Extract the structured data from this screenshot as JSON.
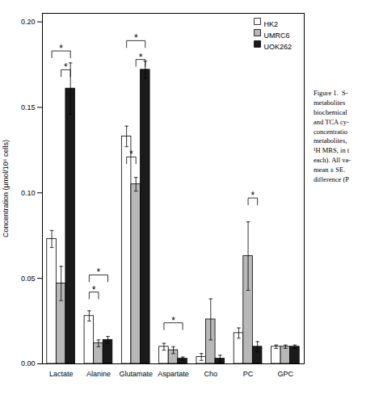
{
  "chart_data": {
    "type": "bar",
    "categories": [
      "Lactate",
      "Alanine",
      "Glutamate",
      "Aspartate",
      "Cho",
      "PC",
      "GPC"
    ],
    "series": [
      {
        "name": "HK2",
        "color": "white",
        "values": [
          0.073,
          0.028,
          0.133,
          0.01,
          0.004,
          0.018,
          0.01
        ],
        "errors": [
          0.005,
          0.003,
          0.006,
          0.002,
          0.002,
          0.003,
          0.001
        ]
      },
      {
        "name": "UMRC6",
        "color": "#b8b8b8",
        "values": [
          0.047,
          0.012,
          0.105,
          0.008,
          0.026,
          0.063,
          0.01
        ],
        "errors": [
          0.01,
          0.002,
          0.004,
          0.002,
          0.012,
          0.02,
          0.001
        ]
      },
      {
        "name": "UOK262",
        "color": "#1a1a1a",
        "values": [
          0.161,
          0.014,
          0.172,
          0.003,
          0.003,
          0.01,
          0.01
        ],
        "errors": [
          0.015,
          0.002,
          0.005,
          0.001,
          0.002,
          0.003,
          0.001
        ]
      }
    ],
    "ylabel": "Concentration (μmol/10⁶ cells)",
    "ylim": [
      0,
      0.205
    ],
    "yticks": [
      {
        "value": 0,
        "label": "0.00"
      },
      {
        "value": 0.05,
        "label": "0.05"
      },
      {
        "value": 0.1,
        "label": "0.10"
      },
      {
        "value": 0.15,
        "label": "0.15"
      },
      {
        "value": 0.2,
        "label": "0.20"
      }
    ],
    "legend": "top-right",
    "annotations": [
      {
        "text": "*",
        "category": "Lactate",
        "from": "HK2",
        "to": "UOK262",
        "y": 0.179,
        "y_top": 0.183
      },
      {
        "text": "*",
        "category": "Lactate",
        "from": "UMRC6",
        "to": "UOK262",
        "y": 0.168,
        "y_top": 0.172
      },
      {
        "text": "*",
        "category": "Alanine",
        "from": "HK2",
        "to": "UMRC6",
        "y": 0.038,
        "y_top": 0.042
      },
      {
        "text": "*",
        "category": "Alanine",
        "from": "HK2",
        "to": "UOK262",
        "y": 0.048,
        "y_top": 0.052
      },
      {
        "text": "*",
        "category": "Glutamate",
        "from": "HK2",
        "to": "UMRC6",
        "y": 0.117,
        "y_top": 0.121
      },
      {
        "text": "*",
        "category": "Glutamate",
        "from": "UMRC6",
        "to": "UOK262",
        "y": 0.174,
        "y_top": 0.178
      },
      {
        "text": "*",
        "category": "Glutamate",
        "from": "HK2",
        "to": "UOK262",
        "y": 0.185,
        "y_top": 0.189
      },
      {
        "text": "*",
        "category": "Aspartate",
        "from": "HK2",
        "to": "UOK262",
        "y": 0.02,
        "y_top": 0.024
      },
      {
        "text": "*",
        "category": "PC",
        "from": "UMRC6",
        "to": "UOK262",
        "y": 0.093,
        "y_top": 0.097
      }
    ],
    "caption": [
      "Figure 1.  S-",
      "metabolites",
      "biochemical",
      "and TCA cy-",
      "concentratio",
      "metabolites,",
      "¹H MRS, in t",
      "each). All va-",
      "mean ± SE.",
      "difference (P"
    ]
  }
}
